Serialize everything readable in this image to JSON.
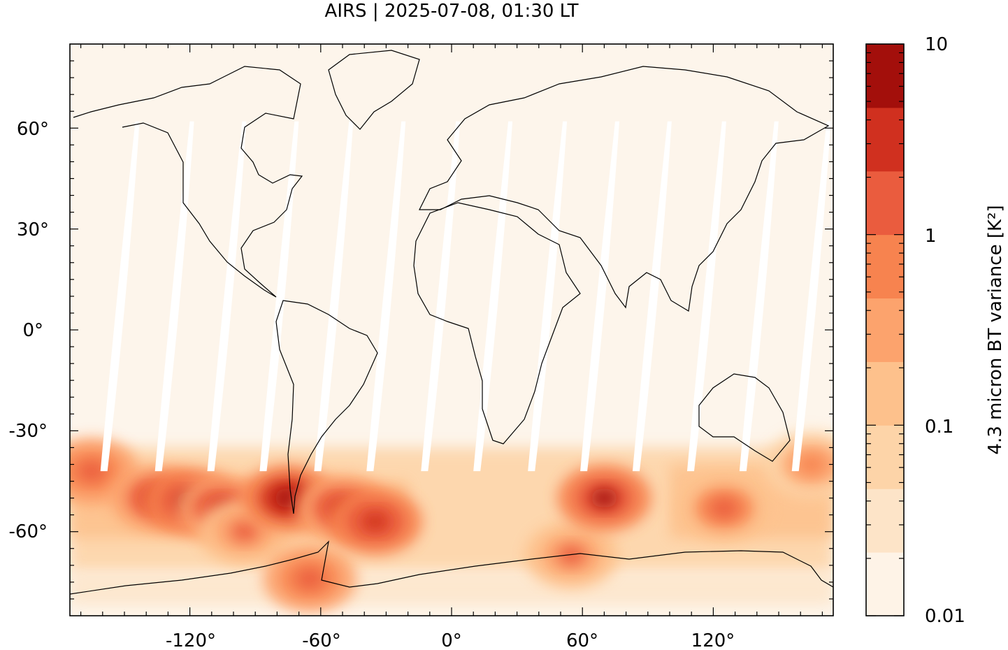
{
  "title": "AIRS | 2025-07-08, 01:30 LT",
  "colors": {
    "background_field": "#fdf5eb",
    "swath_gap": "#ffffff",
    "coastline": "#000000",
    "axis": "#000000"
  },
  "map": {
    "x_ticks": [
      {
        "value": -120,
        "label": "-120°"
      },
      {
        "value": -60,
        "label": "-60°"
      },
      {
        "value": 0,
        "label": "0°"
      },
      {
        "value": 60,
        "label": "60°"
      },
      {
        "value": 120,
        "label": "120°"
      }
    ],
    "y_ticks": [
      {
        "value": 60,
        "label": "60°"
      },
      {
        "value": 30,
        "label": "30°"
      },
      {
        "value": 0,
        "label": "0°"
      },
      {
        "value": -30,
        "label": "-30°"
      },
      {
        "value": -60,
        "label": "-60°"
      }
    ],
    "lon_range": [
      -175,
      175
    ],
    "lat_range": [
      -85,
      85
    ]
  },
  "colorbar": {
    "label": "4.3 micron BT variance [K²]",
    "scale": "log",
    "range": [
      0.01,
      10
    ],
    "tick_labels": [
      {
        "value": 10,
        "label": "10"
      },
      {
        "value": 1,
        "label": "1"
      },
      {
        "value": 0.1,
        "label": "0.1"
      },
      {
        "value": 0.01,
        "label": "0.01"
      }
    ],
    "bands": [
      {
        "color": "#fef3e7"
      },
      {
        "color": "#fde4c8"
      },
      {
        "color": "#fdd4a8"
      },
      {
        "color": "#fdc18c"
      },
      {
        "color": "#fca36d"
      },
      {
        "color": "#f7834f"
      },
      {
        "color": "#ea5c3e"
      },
      {
        "color": "#d0301f"
      },
      {
        "color": "#a30f0b"
      }
    ]
  },
  "chart_data": {
    "type": "heatmap",
    "title": "AIRS | 2025-07-08, 01:30 LT",
    "xlabel": "",
    "ylabel": "",
    "colorbar_label": "4.3 micron BT variance [K²]",
    "xlim": [
      -175,
      175
    ],
    "ylim": [
      -85,
      85
    ],
    "x_ticks": [
      -120,
      -60,
      0,
      60,
      120
    ],
    "y_ticks": [
      60,
      30,
      0,
      -30,
      -60
    ],
    "color_scale": "log",
    "color_range": [
      0.01,
      10
    ],
    "hotspots": [
      {
        "lon": -165,
        "lat": -42,
        "level": 2.0
      },
      {
        "lon": -135,
        "lat": -50,
        "level": 3.0
      },
      {
        "lon": -120,
        "lat": -51,
        "level": 5.0
      },
      {
        "lon": -105,
        "lat": -53,
        "level": 3.0
      },
      {
        "lon": -95,
        "lat": -60,
        "level": 1.0
      },
      {
        "lon": -75,
        "lat": -50,
        "level": 8.0
      },
      {
        "lon": -65,
        "lat": -74,
        "level": 2.0
      },
      {
        "lon": -50,
        "lat": -53,
        "level": 3.0
      },
      {
        "lon": -35,
        "lat": -57,
        "level": 4.0
      },
      {
        "lon": 55,
        "lat": -67,
        "level": 1.0
      },
      {
        "lon": 70,
        "lat": -50,
        "level": 5.0
      },
      {
        "lon": 125,
        "lat": -53,
        "level": 1.5
      },
      {
        "lon": 165,
        "lat": -40,
        "level": 0.8
      }
    ]
  }
}
